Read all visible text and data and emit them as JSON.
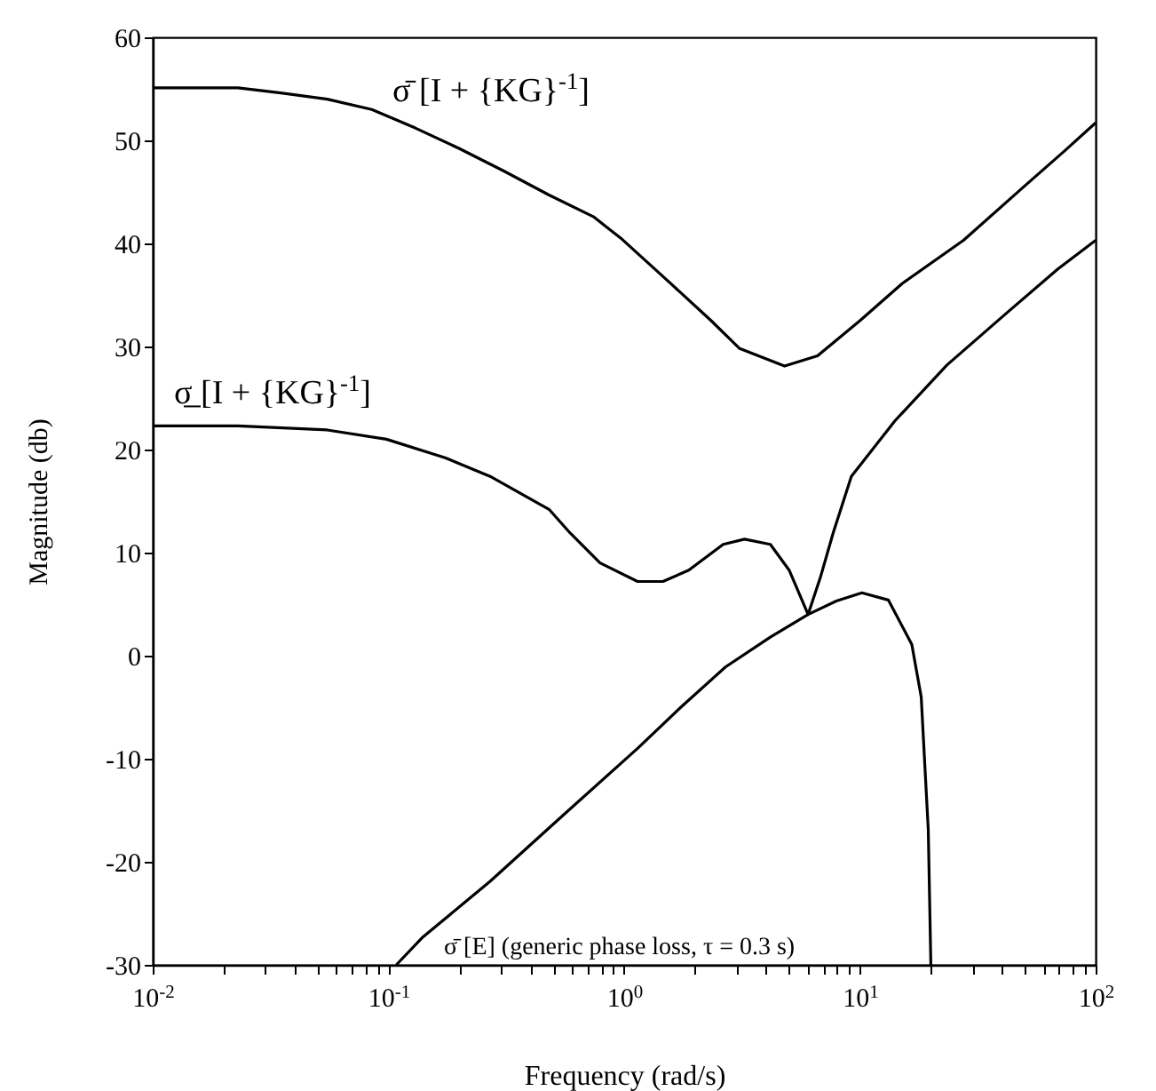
{
  "chart_data": {
    "type": "line",
    "xlabel": "Frequency (rad/s)",
    "ylabel": "Magnitude (db)",
    "log": "x",
    "grid": false,
    "marker": "none",
    "line_style": "solid",
    "xlim": [
      0.01,
      100
    ],
    "ylim": [
      -30,
      60
    ],
    "xticks": [
      {
        "value": 0.01,
        "label": "10$^{-2}$"
      },
      {
        "value": 0.02,
        "label": null
      },
      {
        "value": 0.03,
        "label": null
      },
      {
        "value": 0.04,
        "label": null
      },
      {
        "value": 0.05,
        "label": null
      },
      {
        "value": 0.06,
        "label": null
      },
      {
        "value": 0.07,
        "label": null
      },
      {
        "value": 0.08,
        "label": null
      },
      {
        "value": 0.09,
        "label": null
      },
      {
        "value": 0.1,
        "label": "10$^{-1}$"
      },
      {
        "value": 0.2,
        "label": null
      },
      {
        "value": 0.3,
        "label": null
      },
      {
        "value": 0.4,
        "label": null
      },
      {
        "value": 0.5,
        "label": null
      },
      {
        "value": 0.6,
        "label": null
      },
      {
        "value": 0.7,
        "label": null
      },
      {
        "value": 0.8,
        "label": null
      },
      {
        "value": 0.9,
        "label": null
      },
      {
        "value": 1,
        "label": "10$^{0}$"
      },
      {
        "value": 2,
        "label": null
      },
      {
        "value": 3,
        "label": null
      },
      {
        "value": 4,
        "label": null
      },
      {
        "value": 5,
        "label": null
      },
      {
        "value": 6,
        "label": null
      },
      {
        "value": 7,
        "label": null
      },
      {
        "value": 8,
        "label": null
      },
      {
        "value": 9,
        "label": null
      },
      {
        "value": 10,
        "label": "10$^{1}$"
      },
      {
        "value": 20,
        "label": null
      },
      {
        "value": 30,
        "label": null
      },
      {
        "value": 40,
        "label": null
      },
      {
        "value": 50,
        "label": null
      },
      {
        "value": 60,
        "label": null
      },
      {
        "value": 70,
        "label": null
      },
      {
        "value": 80,
        "label": null
      },
      {
        "value": 90,
        "label": null
      },
      {
        "value": 100,
        "label": "10$^{2}$"
      }
    ],
    "yticks": [
      -30,
      -20,
      -10,
      0,
      10,
      20,
      30,
      40,
      50,
      60
    ],
    "series": [
      {
        "name": "σ̄ [I + {KG}$^{-1}$]",
        "color": "#000000",
        "x": [
          0.01,
          0.023,
          0.035,
          0.055,
          0.085,
          0.13,
          0.2,
          0.31,
          0.48,
          0.74,
          0.98,
          1.51,
          2.34,
          3.09,
          4.79,
          6.61,
          10,
          15.1,
          27.5,
          49,
          74,
          100
        ],
        "values": [
          55.1,
          55.1,
          54.6,
          54.0,
          53.0,
          51.2,
          49.2,
          47.0,
          44.7,
          42.6,
          40.4,
          36.5,
          32.5,
          29.8,
          28.1,
          29.1,
          32.5,
          36.1,
          40.3,
          45.4,
          49.0,
          51.7
        ]
      },
      {
        "name": "σ̲ [I + {KG}$^{-1}$]",
        "color": "#000000",
        "x": [
          0.01,
          0.023,
          0.055,
          0.098,
          0.174,
          0.27,
          0.48,
          0.59,
          0.79,
          1.14,
          1.46,
          1.88,
          2.63,
          3.24,
          4.17,
          5.01,
          6.03,
          6.8,
          7.7,
          9.2,
          14.1,
          23.4,
          41.7,
          69,
          100
        ],
        "values": [
          22.3,
          22.3,
          21.9,
          21.0,
          19.2,
          17.4,
          14.2,
          11.9,
          9.0,
          7.2,
          7.2,
          8.3,
          10.8,
          11.3,
          10.8,
          8.3,
          4.0,
          7.6,
          11.9,
          17.4,
          22.8,
          28.2,
          33.2,
          37.5,
          40.3
        ]
      },
      {
        "name": "σ̄ [E]  (generic phase loss, τ = 0.3 s)",
        "color": "#000000",
        "x": [
          0.108,
          0.14,
          0.27,
          0.55,
          1.14,
          1.74,
          2.69,
          4.17,
          6.03,
          7.94,
          10.2,
          13.2,
          16.6,
          18.2,
          19.5,
          20
        ],
        "values": [
          -30,
          -27.3,
          -21.9,
          -15.5,
          -9.0,
          -5.0,
          -1.1,
          1.8,
          4.0,
          5.3,
          6.1,
          5.4,
          1.1,
          -4.0,
          -16.9,
          -30
        ]
      }
    ]
  }
}
